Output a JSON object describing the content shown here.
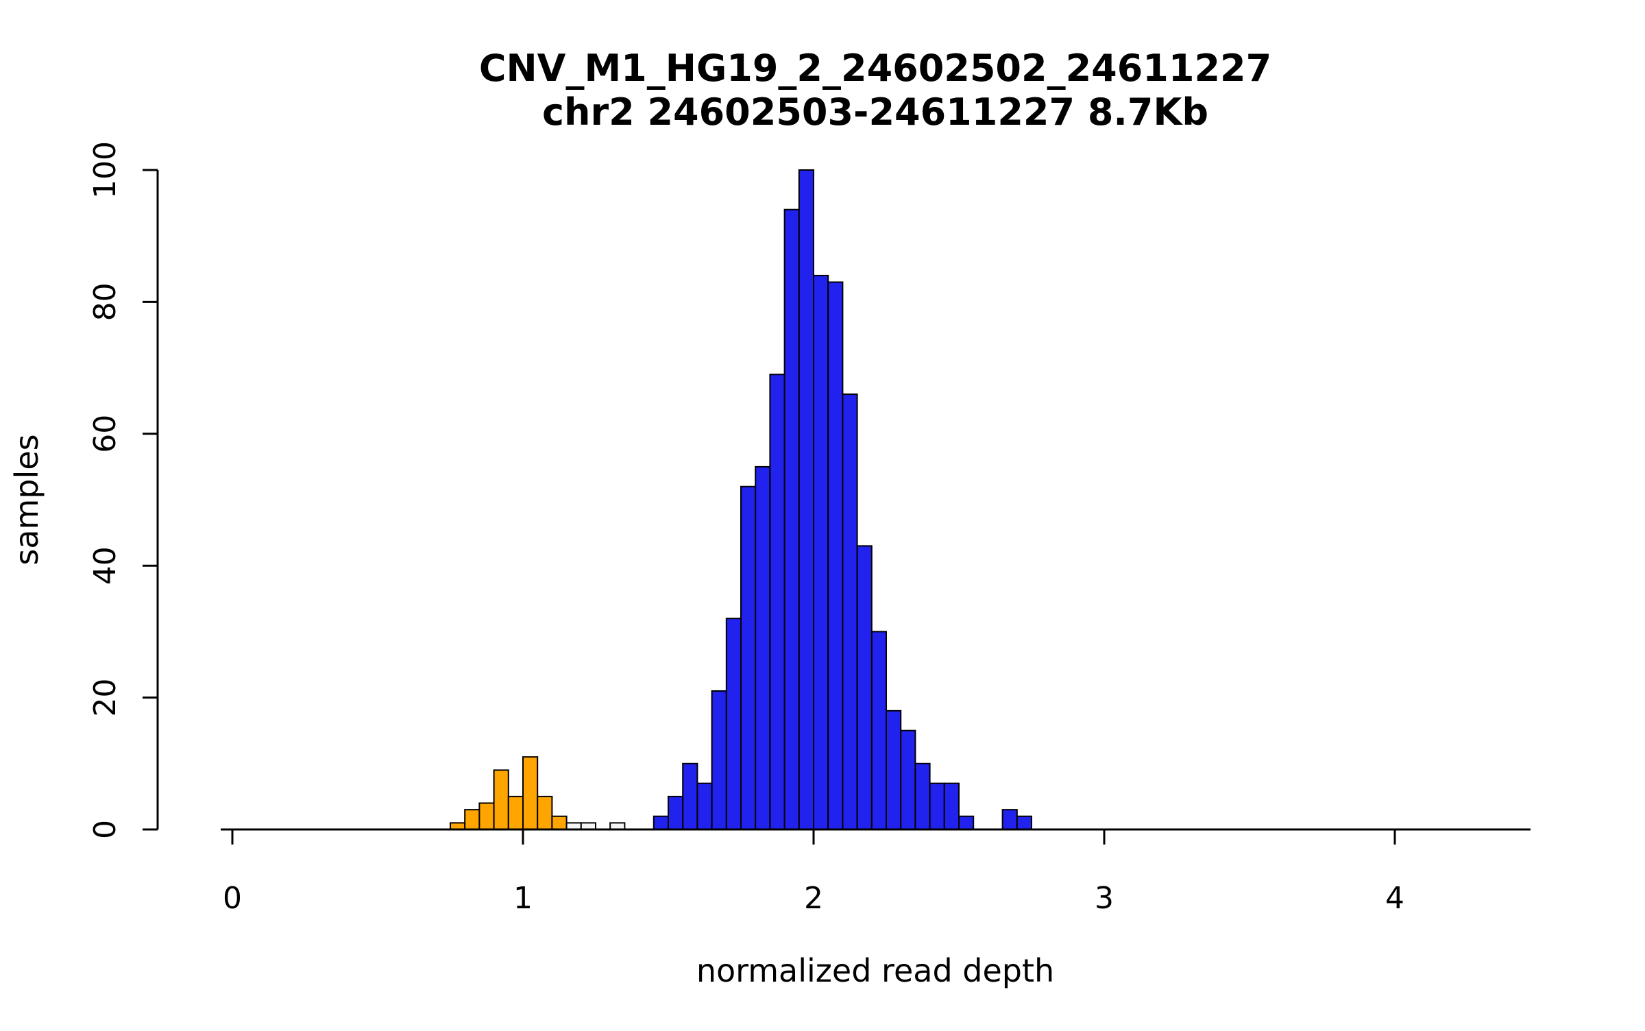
{
  "chart_data": {
    "type": "bar",
    "title": "CNV_M1_HG19_2_24602502_24611227",
    "subtitle": "chr2 24602503-24611227 8.7Kb",
    "xlabel": "normalized read depth",
    "ylabel": "samples",
    "xlim": [
      0,
      4.5
    ],
    "ylim": [
      0,
      100
    ],
    "x_ticks": [
      0,
      1,
      2,
      3,
      4
    ],
    "y_ticks": [
      0,
      20,
      40,
      60,
      80,
      100
    ],
    "grid": "off",
    "legend": "none",
    "bin_width": 0.05,
    "colors": {
      "orange": "#FFA500",
      "white": "#F5F5F5",
      "blue": "#2222EE",
      "stroke": "#000000"
    },
    "bars": [
      {
        "x": 0.75,
        "count": 1,
        "color": "orange"
      },
      {
        "x": 0.8,
        "count": 3,
        "color": "orange"
      },
      {
        "x": 0.85,
        "count": 4,
        "color": "orange"
      },
      {
        "x": 0.9,
        "count": 9,
        "color": "orange"
      },
      {
        "x": 0.95,
        "count": 5,
        "color": "orange"
      },
      {
        "x": 1.0,
        "count": 11,
        "color": "orange"
      },
      {
        "x": 1.05,
        "count": 5,
        "color": "orange"
      },
      {
        "x": 1.1,
        "count": 2,
        "color": "orange"
      },
      {
        "x": 1.15,
        "count": 1,
        "color": "white"
      },
      {
        "x": 1.2,
        "count": 1,
        "color": "white"
      },
      {
        "x": 1.3,
        "count": 1,
        "color": "white"
      },
      {
        "x": 1.45,
        "count": 2,
        "color": "blue"
      },
      {
        "x": 1.5,
        "count": 5,
        "color": "blue"
      },
      {
        "x": 1.55,
        "count": 10,
        "color": "blue"
      },
      {
        "x": 1.6,
        "count": 7,
        "color": "blue"
      },
      {
        "x": 1.65,
        "count": 21,
        "color": "blue"
      },
      {
        "x": 1.7,
        "count": 32,
        "color": "blue"
      },
      {
        "x": 1.75,
        "count": 52,
        "color": "blue"
      },
      {
        "x": 1.8,
        "count": 55,
        "color": "blue"
      },
      {
        "x": 1.85,
        "count": 69,
        "color": "blue"
      },
      {
        "x": 1.9,
        "count": 94,
        "color": "blue"
      },
      {
        "x": 1.95,
        "count": 100,
        "color": "blue"
      },
      {
        "x": 2.0,
        "count": 84,
        "color": "blue"
      },
      {
        "x": 2.05,
        "count": 83,
        "color": "blue"
      },
      {
        "x": 2.1,
        "count": 66,
        "color": "blue"
      },
      {
        "x": 2.15,
        "count": 43,
        "color": "blue"
      },
      {
        "x": 2.2,
        "count": 30,
        "color": "blue"
      },
      {
        "x": 2.25,
        "count": 18,
        "color": "blue"
      },
      {
        "x": 2.3,
        "count": 15,
        "color": "blue"
      },
      {
        "x": 2.35,
        "count": 10,
        "color": "blue"
      },
      {
        "x": 2.4,
        "count": 7,
        "color": "blue"
      },
      {
        "x": 2.45,
        "count": 7,
        "color": "blue"
      },
      {
        "x": 2.5,
        "count": 2,
        "color": "blue"
      },
      {
        "x": 2.65,
        "count": 3,
        "color": "blue"
      },
      {
        "x": 2.7,
        "count": 2,
        "color": "blue"
      }
    ]
  }
}
